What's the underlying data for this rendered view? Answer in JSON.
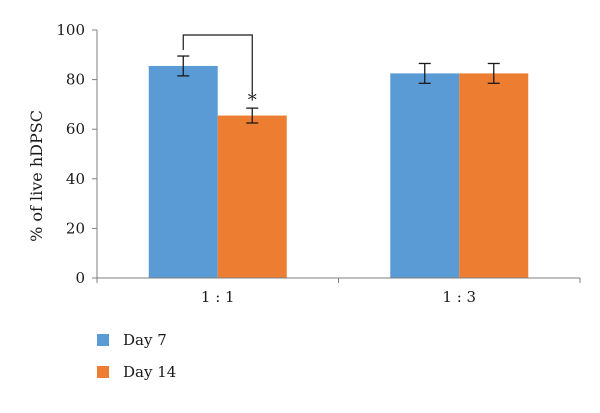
{
  "chart_data": {
    "type": "bar",
    "categories": [
      "1 : 1",
      "1 : 3"
    ],
    "series": [
      {
        "name": "Day 7",
        "values": [
          85.5,
          82.5
        ],
        "errors": [
          4,
          4
        ],
        "color": "#5b9bd5"
      },
      {
        "name": "Day 14",
        "values": [
          65.5,
          82.5
        ],
        "errors": [
          3,
          4
        ],
        "color": "#ed7d31"
      }
    ],
    "title": "",
    "xlabel": "",
    "ylabel": "% of live hDPSC",
    "ylim": [
      0,
      100
    ],
    "yticks": [
      0,
      20,
      40,
      60,
      80,
      100
    ],
    "grid": false,
    "legend": "bottom-left",
    "significance": [
      {
        "category_index": 0,
        "from_series": 0,
        "to_series": 1,
        "label": "*"
      }
    ],
    "colors": {
      "axis": "#7f7f7f",
      "error_bar": "#1a1a1a"
    }
  }
}
